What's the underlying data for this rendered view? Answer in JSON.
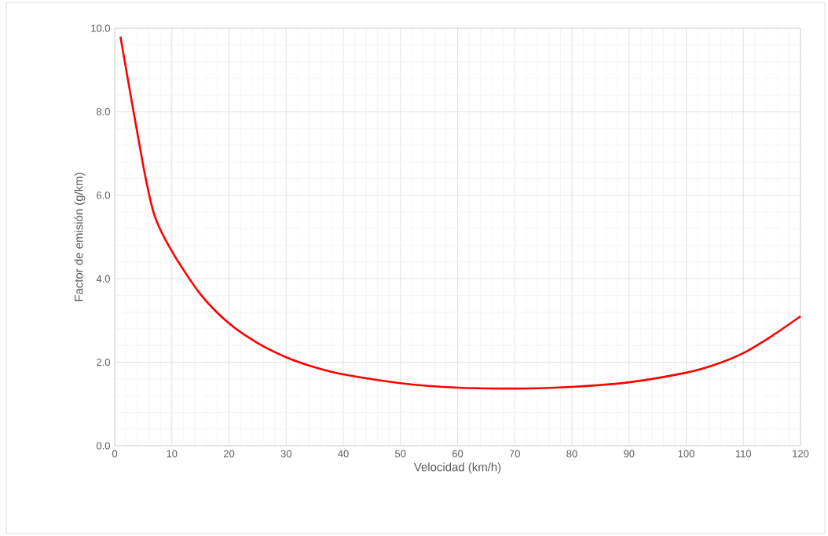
{
  "chart_data": {
    "type": "line",
    "xlabel": "Velocidad (km/h)",
    "ylabel": "Factor de emisión (g/km)",
    "x": [
      1,
      5,
      7,
      10,
      15,
      20,
      25,
      30,
      35,
      40,
      50,
      60,
      70,
      80,
      90,
      100,
      105,
      110,
      115,
      120
    ],
    "series": [
      {
        "color": "#ff0000",
        "values": [
          9.8,
          6.7,
          5.5,
          4.66,
          3.63,
          2.93,
          2.46,
          2.12,
          1.88,
          1.71,
          1.5,
          1.39,
          1.37,
          1.41,
          1.52,
          1.75,
          1.94,
          2.22,
          2.63,
          3.1
        ]
      }
    ],
    "xlim": [
      0,
      120
    ],
    "xticks": [
      0,
      10,
      20,
      30,
      40,
      50,
      60,
      70,
      80,
      90,
      100,
      110,
      120
    ],
    "ylim": [
      0,
      10
    ],
    "yticks": [
      {
        "value": 0,
        "label": "0.0"
      },
      {
        "value": 2,
        "label": "2.0"
      },
      {
        "value": 4,
        "label": "4.0"
      },
      {
        "value": 6,
        "label": "6.0"
      },
      {
        "value": 8,
        "label": "8.0"
      },
      {
        "value": 10,
        "label": "10.0"
      }
    ],
    "grid": true,
    "marker": "none",
    "line_style": "solid",
    "legend": false
  }
}
